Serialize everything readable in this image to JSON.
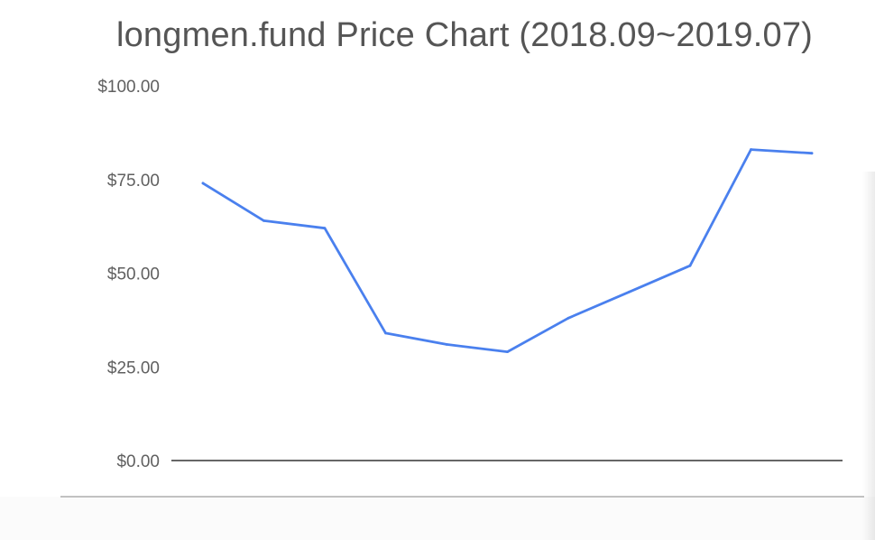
{
  "chart_data": {
    "type": "line",
    "title": "longmen.fund Price Chart (2018.09~2019.07)",
    "xlabel": "",
    "ylabel": "",
    "ylim": [
      0,
      100
    ],
    "yticks": [
      "$0.00",
      "$25.00",
      "$50.00",
      "$75.00",
      "$100.00"
    ],
    "ytick_values": [
      0,
      25,
      50,
      75,
      100
    ],
    "grid": false,
    "legend": "none",
    "series": [
      {
        "color": "#4a80ee",
        "values": [
          74,
          64,
          62,
          34,
          31,
          29,
          38,
          45,
          52,
          83,
          82
        ]
      }
    ],
    "baseline_color": "#333333",
    "frame_line_color": "#9e9e9e"
  }
}
